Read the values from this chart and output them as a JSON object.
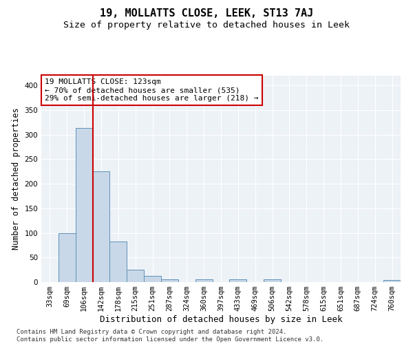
{
  "title": "19, MOLLATTS CLOSE, LEEK, ST13 7AJ",
  "subtitle": "Size of property relative to detached houses in Leek",
  "xlabel": "Distribution of detached houses by size in Leek",
  "ylabel": "Number of detached properties",
  "bin_labels": [
    "33sqm",
    "69sqm",
    "106sqm",
    "142sqm",
    "178sqm",
    "215sqm",
    "251sqm",
    "287sqm",
    "324sqm",
    "360sqm",
    "397sqm",
    "433sqm",
    "469sqm",
    "506sqm",
    "542sqm",
    "578sqm",
    "615sqm",
    "651sqm",
    "687sqm",
    "724sqm",
    "760sqm"
  ],
  "bar_heights": [
    0,
    100,
    313,
    225,
    82,
    25,
    12,
    6,
    0,
    5,
    0,
    5,
    0,
    5,
    0,
    0,
    0,
    0,
    0,
    0,
    4
  ],
  "bar_color": "#c8d8e8",
  "bar_edgecolor": "#6090b8",
  "red_line_index": 2,
  "red_line_color": "#cc0000",
  "annotation_text": "19 MOLLATTS CLOSE: 123sqm\n← 70% of detached houses are smaller (535)\n29% of semi-detached houses are larger (218) →",
  "annotation_box_color": "#ffffff",
  "annotation_box_edgecolor": "#cc0000",
  "ylim": [
    0,
    420
  ],
  "yticks": [
    0,
    50,
    100,
    150,
    200,
    250,
    300,
    350,
    400
  ],
  "background_color": "#edf2f7",
  "footer_text": "Contains HM Land Registry data © Crown copyright and database right 2024.\nContains public sector information licensed under the Open Government Licence v3.0.",
  "title_fontsize": 11,
  "subtitle_fontsize": 9.5,
  "annotation_fontsize": 8,
  "footer_fontsize": 6.5,
  "tick_fontsize": 7.5
}
